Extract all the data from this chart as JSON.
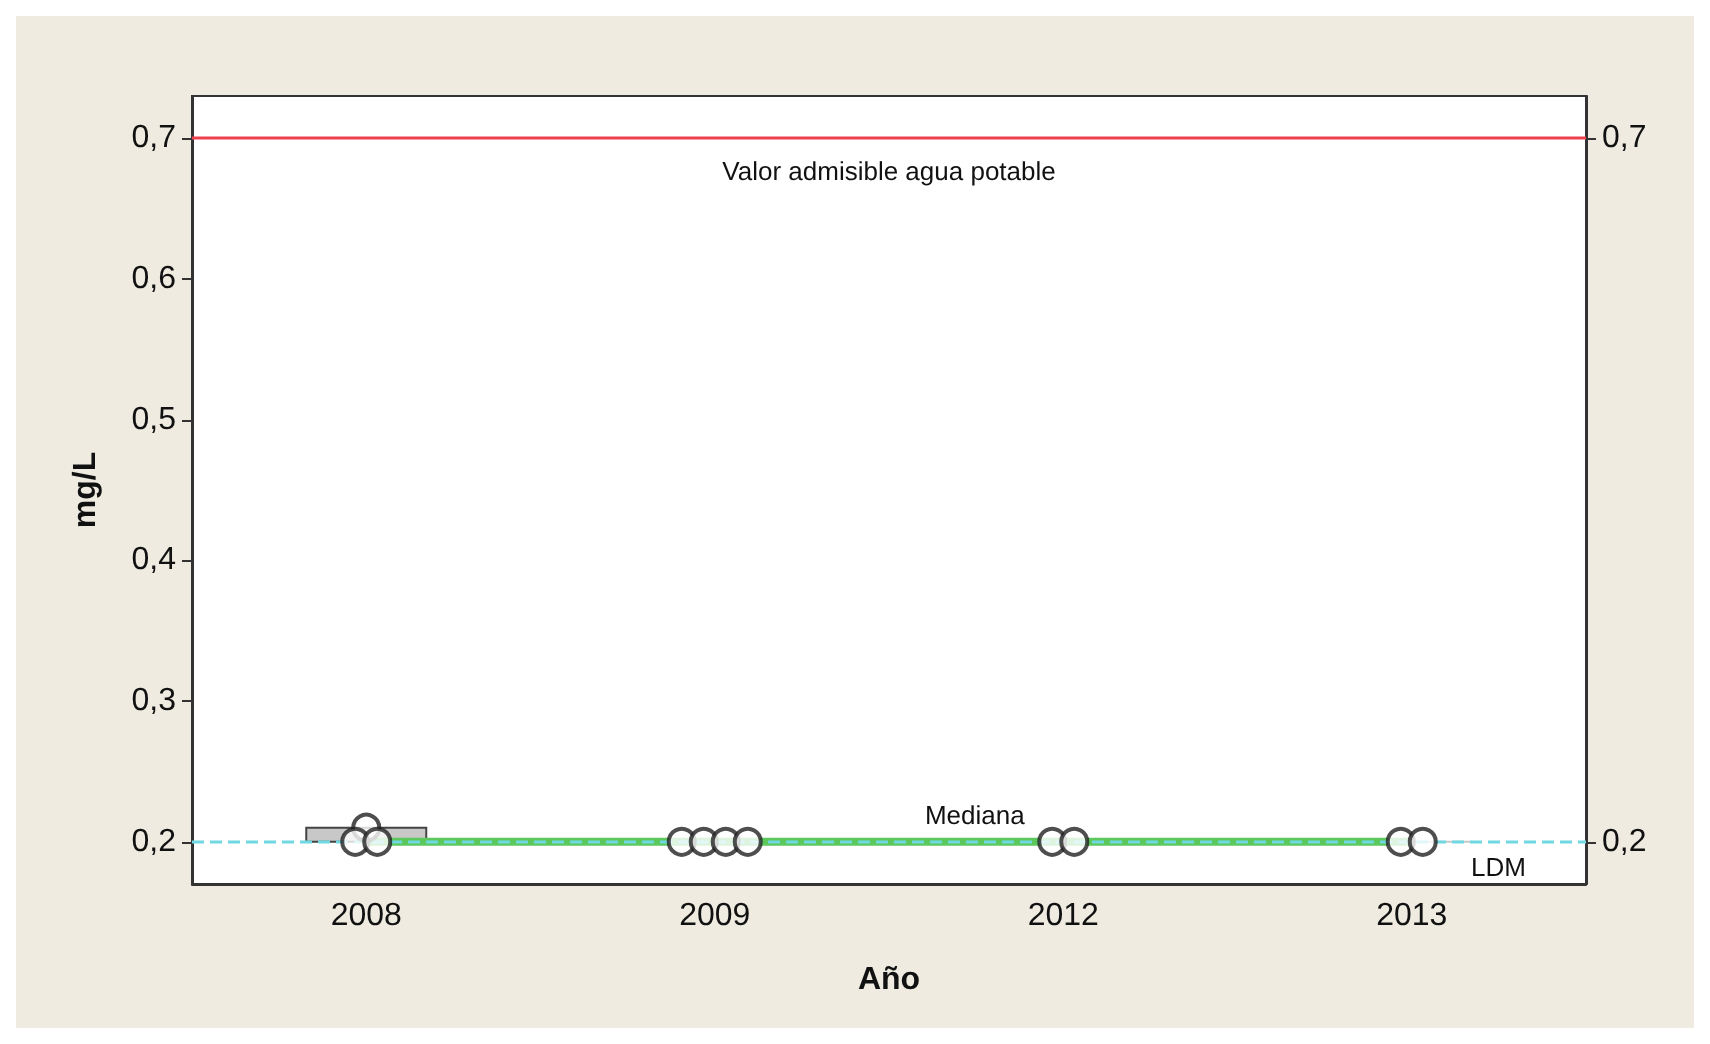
{
  "chart_data": {
    "type": "box",
    "xlabel": "Año",
    "ylabel": "mg/L",
    "categories": [
      "2008",
      "2009",
      "2012",
      "2013"
    ],
    "ylim": [
      0.17,
      0.73
    ],
    "yticks": [
      {
        "value": 0.2,
        "label": "0,2"
      },
      {
        "value": 0.3,
        "label": "0,3"
      },
      {
        "value": 0.4,
        "label": "0,4"
      },
      {
        "value": 0.5,
        "label": "0,5"
      },
      {
        "value": 0.6,
        "label": "0,6"
      },
      {
        "value": 0.7,
        "label": "0,7"
      }
    ],
    "y2lim": [
      0.17,
      0.73
    ],
    "y2ticks": [
      {
        "value": 0.2,
        "label": "0,2"
      },
      {
        "value": 0.7,
        "label": "0,7"
      }
    ],
    "series": [
      {
        "color": "#c8c8c8",
        "boxes": [
          {
            "low": 0.2,
            "q1": 0.2,
            "median": 0.2,
            "q3": 0.21,
            "high": 0.21
          },
          {
            "low": 0.2,
            "q1": 0.2,
            "median": 0.2,
            "q3": 0.2,
            "high": 0.2
          },
          {
            "low": 0.2,
            "q1": 0.2,
            "median": 0.2,
            "q3": 0.2,
            "high": 0.2
          },
          {
            "low": 0.2,
            "q1": 0.2,
            "median": 0.2,
            "q3": 0.2,
            "high": 0.2
          }
        ]
      },
      {
        "type": "scatter",
        "color": "#222222",
        "marker": "circle",
        "values": [
          0.21,
          0.2,
          0.2,
          0.2
        ]
      },
      {
        "type": "scatter",
        "color": "#222222",
        "marker": "circle",
        "values": [
          0.2,
          0.2,
          0.2,
          0.2
        ]
      },
      {
        "type": "scatter",
        "color": "#222222",
        "marker": "circle",
        "values": [
          0.2,
          0.2,
          null,
          null
        ]
      },
      {
        "type": "scatter",
        "color": "#222222",
        "marker": "circle",
        "values": [
          null,
          0.2,
          null,
          null
        ]
      },
      {
        "type": "line",
        "name": "Mediana",
        "color": "#5cc85c",
        "values": [
          0.2,
          0.2,
          0.2,
          0.2
        ]
      }
    ],
    "ref_lines": [
      {
        "axis": "y",
        "value": 0.7,
        "label": "Valor admisible agua potable",
        "color": "#f04050",
        "line_style": "solid"
      },
      {
        "axis": "y",
        "value": 0.2,
        "label": "LDM",
        "color": "#6fd8e0",
        "line_style": "dashed"
      }
    ],
    "grid": false,
    "legend": false
  }
}
